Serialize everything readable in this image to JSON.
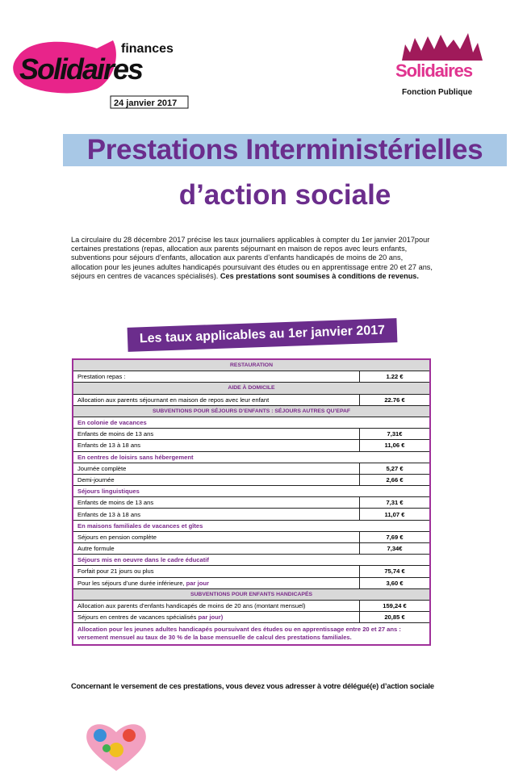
{
  "header": {
    "left_logo": {
      "tag": "finances",
      "name": "Solidaires",
      "date": "24 janvier 2017"
    },
    "right_logo": {
      "name": "Solidaires",
      "subtitle": "Fonction Publique"
    }
  },
  "title": {
    "line1": "Prestations Interministérielles",
    "line2": "d’action sociale"
  },
  "intro": {
    "text": "La circulaire du 28 décembre 2017 précise les taux journaliers applicables à compter du 1er janvier 2017pour certaines prestations (repas, allocation aux parents séjournant en maison de repos avec leurs enfants, subventions pour séjours d’enfants, allocation aux parents d’enfants handicapés de moins de 20 ans, allocation pour les jeunes adultes handicapés poursuivant des études ou en apprentissage entre 20 et 27 ans, séjours en centres de vacances spécialisés).",
    "bold": "Ces prestations sont soumises à conditions de revenus."
  },
  "banner": "Les taux applicables au 1er janvier 2017",
  "table": {
    "groups": [
      {
        "heading": "RESTAURATION",
        "items": [
          {
            "label": "Prestation repas :",
            "amount": "1.22 €"
          }
        ]
      },
      {
        "heading": "AIDE À DOMICILE",
        "items": [
          {
            "label": "Allocation aux parents séjournant en maison de repos avec leur enfant",
            "amount": "22.76 €"
          }
        ]
      },
      {
        "heading": "SUBVENTIONS POUR SÉJOURS D’ENFANTS : SÉJOURS AUTRES QU’EPAF",
        "subgroups": [
          {
            "heading": "En colonie de vacances",
            "items": [
              {
                "label": "Enfants de moins de 13 ans",
                "amount": "7,31€"
              },
              {
                "label": "Enfants de 13 à 18 ans",
                "amount": "11,06 €"
              }
            ]
          },
          {
            "heading": "En centres de loisirs sans hébergement",
            "items": [
              {
                "label": "Journée complète",
                "amount": "5,27 €"
              },
              {
                "label": "Demi-journée",
                "amount": "2,66 €"
              }
            ]
          },
          {
            "heading": "Séjours linguistiques",
            "items": [
              {
                "label": "Enfants de moins de 13 ans",
                "amount": "7,31 €"
              },
              {
                "label": "Enfants de 13 à 18 ans",
                "amount": "11,07 €"
              }
            ]
          },
          {
            "heading": "En maisons familiales de vacances et gîtes",
            "items": [
              {
                "label": "Séjours en pension complète",
                "amount": "7,69 €"
              },
              {
                "label": "Autre formule",
                "amount": "7,34€"
              }
            ]
          },
          {
            "heading": "Séjours mis en oeuvre dans le cadre éducatif",
            "items": [
              {
                "label": "Forfait pour 21 jours ou plus",
                "amount": "75,74 €"
              },
              {
                "label": "Pour les séjours d’une durée inférieure,",
                "emphasis": "par jour",
                "amount": "3,60 €"
              }
            ]
          }
        ]
      },
      {
        "heading": "SUBVENTIONS POUR ENFANTS HANDICAPÉS",
        "items": [
          {
            "label": "Allocation aux parents d’enfants handicapés de moins de 20 ans (montant mensuel)",
            "amount": "159,24 €"
          },
          {
            "label": "Séjours en centres de vacances spécialisés",
            "emphasis": "par jour)",
            "amount": "20,85 €"
          }
        ]
      }
    ],
    "note": "Allocation pour les jeunes adultes handicapés poursuivant des études ou en apprentissage entre 20 et 27 ans : versement mensuel au taux de 30 % de la base mensuelle de calcul des prestations familiales."
  },
  "footer": "Concernant le versement de ces prestations, vous devez vous adresser à votre délégué(e) d’action sociale"
}
